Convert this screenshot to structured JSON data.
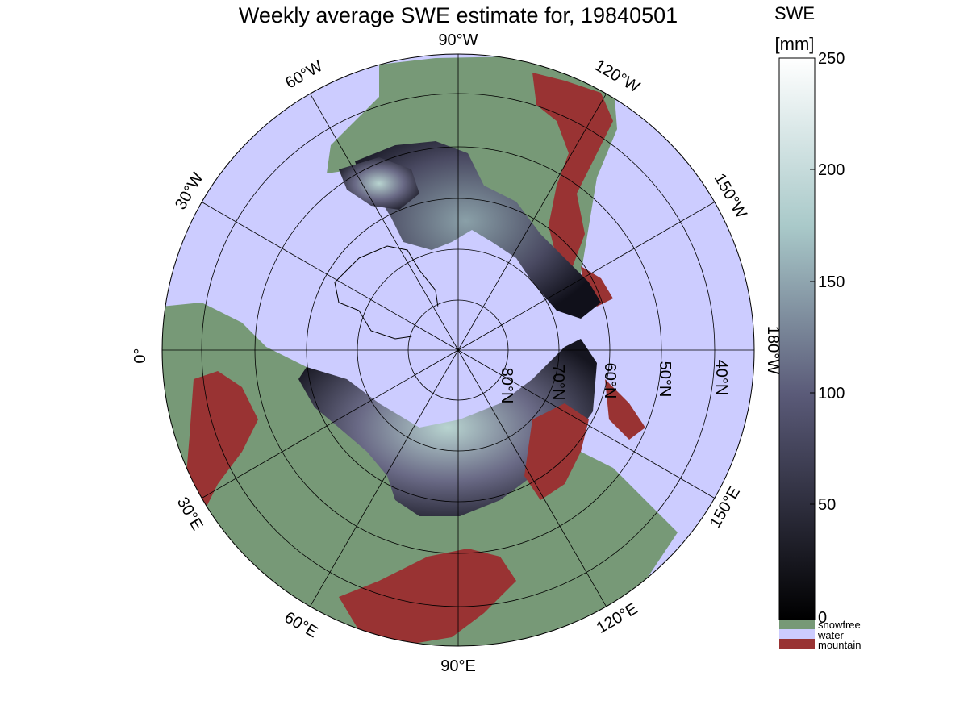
{
  "title": "Weekly average SWE estimate for, 19840501",
  "colorbar": {
    "title_line1": "SWE",
    "title_line2": "[mm]",
    "ticks": [
      "0",
      "50",
      "100",
      "150",
      "200",
      "250"
    ],
    "range": [
      0,
      250
    ],
    "colors": {
      "low": "#000000",
      "mid": "#5a5a78",
      "high_mid": "#a9c9c9",
      "high": "#ffffff"
    }
  },
  "legend": [
    {
      "label": "snowfree",
      "color": "#779977"
    },
    {
      "label": "water",
      "color": "#ccccff"
    },
    {
      "label": "mountain",
      "color": "#993333"
    }
  ],
  "longitude_labels": {
    "lon_90W": "90°W",
    "lon_120W": "120°W",
    "lon_150W": "150°W",
    "lon_180W": "180°W",
    "lon_150E": "150°E",
    "lon_120E": "120°E",
    "lon_90E": "90°E",
    "lon_60E": "60°E",
    "lon_30E": "30°E",
    "lon_0": "0°",
    "lon_30W": "30°W",
    "lon_60W": "60°W"
  },
  "latitude_labels": [
    "80°N",
    "70°N",
    "60°N",
    "50°N",
    "40°N"
  ],
  "map_colors": {
    "water": "#ccccff",
    "snowfree": "#779977",
    "mountain": "#993333",
    "coast": "#000000"
  }
}
